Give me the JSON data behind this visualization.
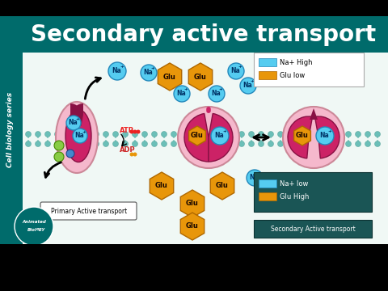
{
  "bg_black": "#000000",
  "bg_teal": "#006b6b",
  "bg_main": "#f0f8f5",
  "sidebar_teal": "#006b6b",
  "title_text": "Secondary active transport",
  "title_color": "#ffffff",
  "sidebar_text": "Cell biology series",
  "sidebar_color": "#ffffff",
  "lipid_head_color": "#6bbfb8",
  "primary_label": "Primary Active transport",
  "secondary_label": "Secondary Active transport",
  "na_color": "#55ccf0",
  "na_border": "#2288bb",
  "glu_color": "#e8960a",
  "glu_border": "#b06800",
  "protein_outer": "#f5b8cc",
  "protein_inner": "#cc2266",
  "protein_dark": "#881144",
  "atp_color": "#ee2222",
  "adp_color": "#cc2222",
  "phosphate_color": "#e8960a",
  "legend1_bg": "#ffffff",
  "legend2_bg": "#1a5555",
  "legend2_text": "#ffffff",
  "green_circle": "#88cc44",
  "green_border": "#448800",
  "blue_circle": "#4488cc",
  "blue_border": "#224488"
}
